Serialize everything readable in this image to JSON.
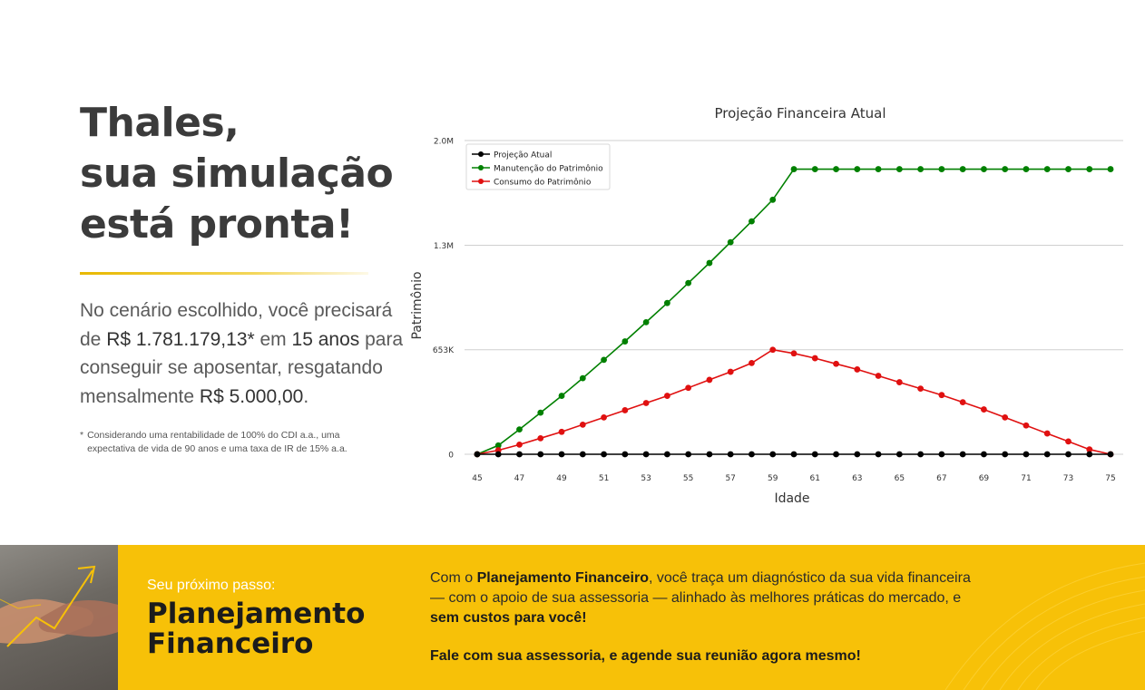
{
  "headline": [
    "Thales,",
    "sua simulação",
    "está pronta!"
  ],
  "summary": {
    "p1": "No cenário escolhido, você precisará de ",
    "amount": "R$ 1.781.179,13*",
    "p2": " em ",
    "years": "15 anos",
    "p3": " para conseguir se aposentar, resgatando mensalmente ",
    "monthly": "R$ 5.000,00",
    "p4": "."
  },
  "footnote": {
    "star": "*",
    "text": "Considerando uma rentabilidade de 100% do CDI a.a., uma expectativa de vida de 90 anos e uma taxa de IR de 15% a.a."
  },
  "banner": {
    "kicker": "Seu próximo passo:",
    "title": [
      "Planejamento",
      "Financeiro"
    ],
    "desc_1": "Com o ",
    "desc_bold_1": "Planejamento Financeiro",
    "desc_2": ", você traça um diagnóstico da sua vida financeira — com o apoio de sua assessoria — alinhado às melhores práticas do mercado, e ",
    "desc_bold_2": "sem custos para você!",
    "cta": "Fale com sua assessoria, e agende sua reunião agora mesmo!"
  },
  "colors": {
    "accent_yellow": "#f7c108",
    "series_black": "#000000",
    "series_green": "#008000",
    "series_red": "#e01010"
  },
  "chart_data": {
    "type": "line",
    "title": "Projeção Financeira Atual",
    "xlabel": "Idade",
    "ylabel": "Patrimônio",
    "ylim": [
      0,
      2000000
    ],
    "yticks": [
      0,
      653000,
      1306000,
      1960000
    ],
    "ytick_labels": [
      "0",
      "653K",
      "1.3M",
      "2.0M"
    ],
    "xticks": [
      45,
      47,
      49,
      51,
      53,
      55,
      57,
      59,
      61,
      63,
      65,
      67,
      69,
      71,
      73,
      75
    ],
    "grid": "horizontal",
    "legend": "top-left",
    "x": [
      45,
      46,
      47,
      48,
      49,
      50,
      51,
      52,
      53,
      54,
      55,
      56,
      57,
      58,
      59,
      60,
      61,
      62,
      63,
      64,
      65,
      66,
      67,
      68,
      69,
      70,
      71,
      72,
      73,
      74,
      75
    ],
    "series": [
      {
        "name": "Projeção Atual",
        "color": "#000000",
        "values": [
          0,
          0,
          0,
          0,
          0,
          0,
          0,
          0,
          0,
          0,
          0,
          0,
          0,
          0,
          0,
          0,
          0,
          0,
          0,
          0,
          0,
          0,
          0,
          0,
          0,
          0,
          0,
          0,
          0,
          0,
          0
        ]
      },
      {
        "name": "Manutenção do Patrimônio",
        "color": "#008000",
        "values": [
          0,
          55000,
          155000,
          260000,
          365000,
          475000,
          590000,
          705000,
          825000,
          945000,
          1070000,
          1195000,
          1325000,
          1455000,
          1590000,
          1781179,
          1781179,
          1781179,
          1781179,
          1781179,
          1781179,
          1781179,
          1781179,
          1781179,
          1781179,
          1781179,
          1781179,
          1781179,
          1781179,
          1781179,
          1781179
        ]
      },
      {
        "name": "Consumo do Patrimônio",
        "color": "#e01010",
        "values": [
          0,
          25000,
          60000,
          100000,
          140000,
          185000,
          230000,
          275000,
          320000,
          365000,
          415000,
          465000,
          515000,
          570000,
          653000,
          630000,
          600000,
          565000,
          530000,
          490000,
          450000,
          410000,
          370000,
          325000,
          280000,
          230000,
          180000,
          130000,
          80000,
          30000,
          0
        ]
      }
    ]
  }
}
